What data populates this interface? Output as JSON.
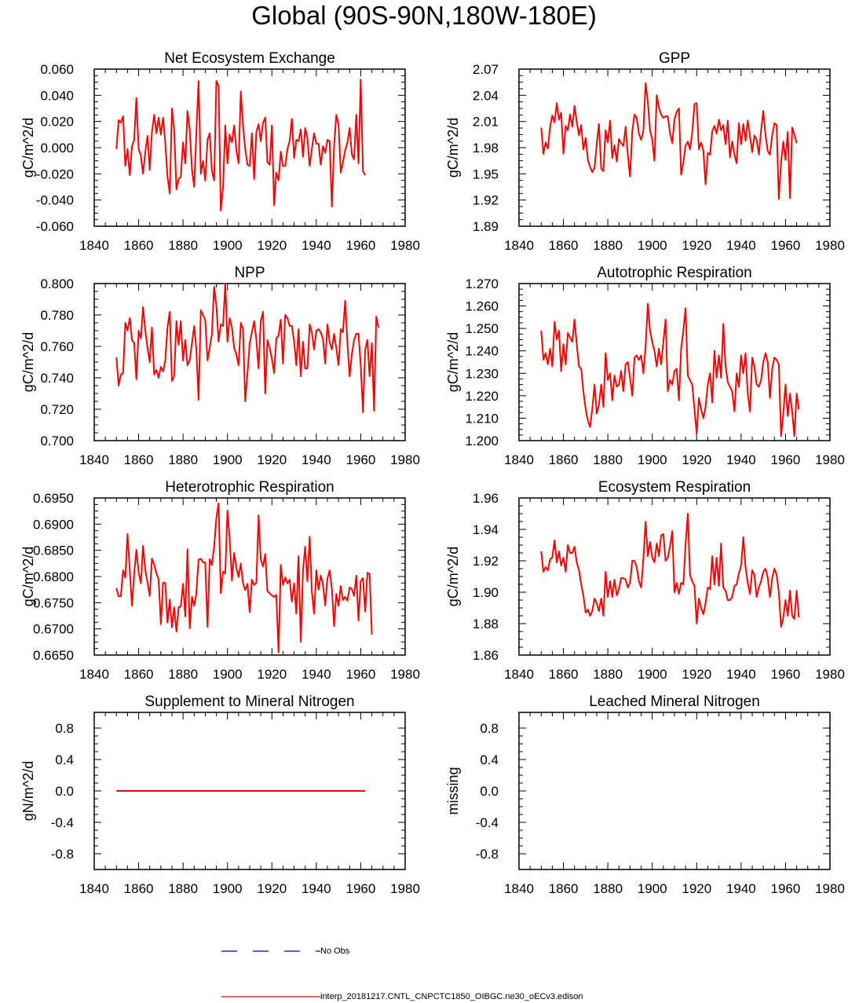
{
  "page": {
    "title": "Global (90S-90N,180W-180E)"
  },
  "legend": {
    "obs_label": "No Obs",
    "model_label": "interp_20181217.CNTL_CNPCTC1850_OIBGC.ne30_oECv3.edison",
    "obs_color": "#0000cc",
    "model_color": "#ff0000"
  },
  "chart_data": [
    {
      "type": "line",
      "title": "Net Ecosystem Exchange",
      "xlabel": "",
      "ylabel": "gC/m^2/d",
      "xlim": [
        1840,
        1980
      ],
      "ylim": [
        -0.06,
        0.06
      ],
      "xticks": [
        1840,
        1860,
        1880,
        1900,
        1920,
        1940,
        1960,
        1980
      ],
      "yticks": [
        -0.06,
        -0.04,
        -0.02,
        0.0,
        0.02,
        0.04,
        0.06
      ],
      "ydecimals": 3,
      "series": [
        {
          "name": "interp_20181217.CNTL_CNPCTC1850_OIBGC.ne30_oECv3.edison",
          "color": "#ff0000",
          "x0": 1850,
          "values": [
            -0.001,
            0.021,
            0.019,
            0.024,
            -0.014,
            -0.001,
            -0.021,
            0.001,
            0.006,
            0.038,
            -0.001,
            -0.006,
            -0.02,
            -0.003,
            0.009,
            -0.017,
            0.012,
            0.025,
            0.011,
            0.023,
            0.01,
            0.023,
            0.004,
            -0.022,
            -0.035,
            0.03,
            0.014,
            -0.032,
            -0.024,
            -0.022,
            0.004,
            -0.012,
            0.028,
            0.014,
            -0.017,
            -0.03,
            0.012,
            0.051,
            -0.02,
            -0.01,
            -0.025,
            0.006,
            0.011,
            -0.018,
            -0.025,
            0.051,
            0.047,
            -0.048,
            -0.03,
            0.017,
            -0.012,
            0.01,
            0.004,
            0.017,
            -0.002,
            -0.012,
            0.043,
            0.017,
            -0.001,
            -0.013,
            -0.014,
            0.011,
            -0.024,
            0.012,
            0.018,
            0.005,
            0.019,
            0.023,
            -0.011,
            -0.013,
            0.017,
            -0.044,
            -0.019,
            -0.025,
            -0.003,
            -0.014,
            -0.014,
            -0.001,
            0.005,
            0.022,
            -0.008,
            0.006,
            0.005,
            0.014,
            -0.007,
            0.015,
            0.007,
            -0.014,
            -0.001,
            0.011,
            0.003,
            0.003,
            -0.013,
            0.001,
            -0.004,
            0.006,
            0.005,
            -0.045,
            0.001,
            0.025,
            0.018,
            -0.019,
            -0.011,
            -0.002,
            0.004,
            0.015,
            -0.005,
            -0.009,
            0.025,
            -0.012,
            0.052,
            -0.018,
            -0.021
          ]
        }
      ]
    },
    {
      "type": "line",
      "title": "GPP",
      "xlabel": "",
      "ylabel": "gC/m^2/d",
      "xlim": [
        1840,
        1980
      ],
      "ylim": [
        1.89,
        2.07
      ],
      "xticks": [
        1840,
        1860,
        1880,
        1900,
        1920,
        1940,
        1960,
        1980
      ],
      "yticks": [
        1.89,
        1.92,
        1.95,
        1.98,
        2.01,
        2.04,
        2.07
      ],
      "ydecimals": 2,
      "series": [
        {
          "name": "interp_20181217.CNTL_CNPCTC1850_OIBGC.ne30_oECv3.edison",
          "color": "#ff0000",
          "x0": 1850,
          "values": [
            2.003,
            1.973,
            1.986,
            1.979,
            2.004,
            2.017,
            2.009,
            2.031,
            2.012,
            2.02,
            1.973,
            2.005,
            2.0,
            2.018,
            2.004,
            2.028,
            2.01,
            1.994,
            2.006,
            1.978,
            1.991,
            1.966,
            1.958,
            1.952,
            1.957,
            1.984,
            2.007,
            1.956,
            1.953,
            2.0,
            1.986,
            2.011,
            1.968,
            1.983,
            1.964,
            1.99,
            1.985,
            1.982,
            2.004,
            1.972,
            1.947,
            1.999,
            2.018,
            2.014,
            1.996,
            1.989,
            1.999,
            2.054,
            2.032,
            2.0,
            1.989,
            1.965,
            2.04,
            2.026,
            2.018,
            2.014,
            2.016,
            2.016,
            1.997,
            1.985,
            2.012,
            2.021,
            2.025,
            1.949,
            1.963,
            1.982,
            1.987,
            1.978,
            1.997,
            2.03,
            2.031,
            1.978,
            1.986,
            1.976,
            1.938,
            1.974,
            1.972,
            1.999,
            2.005,
            1.996,
            2.012,
            2.0,
            2.006,
            1.984,
            2.011,
            1.969,
            1.987,
            1.972,
            1.962,
            2.008,
            1.984,
            2.007,
            1.988,
            2.011,
            1.993,
            1.975,
            1.994,
            1.989,
            1.972,
            2.0,
            2.022,
            1.994,
            1.976,
            1.972,
            1.994,
            2.008,
            2.006,
            1.921,
            1.963,
            1.987,
            1.966,
            1.998,
            1.922,
            2.003,
            1.995,
            1.985
          ]
        }
      ]
    },
    {
      "type": "line",
      "title": "NPP",
      "xlabel": "",
      "ylabel": "gC/m^2/d",
      "xlim": [
        1840,
        1980
      ],
      "ylim": [
        0.7,
        0.8
      ],
      "xticks": [
        1840,
        1860,
        1880,
        1900,
        1920,
        1940,
        1960,
        1980
      ],
      "yticks": [
        0.7,
        0.72,
        0.74,
        0.76,
        0.78,
        0.8
      ],
      "ydecimals": 3,
      "series": [
        {
          "name": "interp_20181217.CNTL_CNPCTC1850_OIBGC.ne30_oECv3.edison",
          "color": "#ff0000",
          "x0": 1850,
          "values": [
            0.753,
            0.735,
            0.742,
            0.743,
            0.775,
            0.77,
            0.778,
            0.764,
            0.762,
            0.739,
            0.77,
            0.765,
            0.785,
            0.77,
            0.759,
            0.75,
            0.772,
            0.742,
            0.745,
            0.74,
            0.747,
            0.744,
            0.751,
            0.772,
            0.782,
            0.738,
            0.741,
            0.776,
            0.761,
            0.776,
            0.751,
            0.764,
            0.748,
            0.751,
            0.762,
            0.773,
            0.758,
            0.726,
            0.783,
            0.78,
            0.777,
            0.751,
            0.759,
            0.768,
            0.798,
            0.786,
            0.763,
            0.774,
            0.773,
            0.8,
            0.763,
            0.778,
            0.772,
            0.759,
            0.755,
            0.748,
            0.775,
            0.771,
            0.725,
            0.743,
            0.762,
            0.769,
            0.776,
            0.764,
            0.746,
            0.776,
            0.782,
            0.73,
            0.764,
            0.759,
            0.752,
            0.743,
            0.765,
            0.767,
            0.777,
            0.749,
            0.78,
            0.778,
            0.773,
            0.773,
            0.763,
            0.748,
            0.771,
            0.741,
            0.763,
            0.746,
            0.746,
            0.774,
            0.769,
            0.758,
            0.77,
            0.771,
            0.769,
            0.765,
            0.749,
            0.774,
            0.763,
            0.758,
            0.768,
            0.759,
            0.748,
            0.771,
            0.769,
            0.789,
            0.762,
            0.741,
            0.755,
            0.764,
            0.768,
            0.768,
            0.748,
            0.718,
            0.758,
            0.764,
            0.741,
            0.762,
            0.719,
            0.779,
            0.772
          ]
        }
      ]
    },
    {
      "type": "line",
      "title": "Autotrophic Respiration",
      "xlabel": "",
      "ylabel": "gC/m^2/d",
      "xlim": [
        1840,
        1980
      ],
      "ylim": [
        1.2,
        1.27
      ],
      "xticks": [
        1840,
        1860,
        1880,
        1900,
        1920,
        1940,
        1960,
        1980
      ],
      "yticks": [
        1.2,
        1.21,
        1.22,
        1.23,
        1.24,
        1.25,
        1.26,
        1.27
      ],
      "ydecimals": 3,
      "series": [
        {
          "name": "interp_20181217.CNTL_CNPCTC1850_OIBGC.ne30_oECv3.edison",
          "color": "#ff0000",
          "x0": 1850,
          "values": [
            1.249,
            1.236,
            1.239,
            1.234,
            1.241,
            1.233,
            1.253,
            1.245,
            1.249,
            1.231,
            1.243,
            1.234,
            1.248,
            1.246,
            1.244,
            1.254,
            1.243,
            1.233,
            1.232,
            1.222,
            1.214,
            1.209,
            1.206,
            1.214,
            1.225,
            1.212,
            1.216,
            1.225,
            1.215,
            1.239,
            1.227,
            1.23,
            1.218,
            1.229,
            1.224,
            1.225,
            1.231,
            1.222,
            1.234,
            1.235,
            1.228,
            1.22,
            1.237,
            1.238,
            1.236,
            1.238,
            1.23,
            1.242,
            1.261,
            1.249,
            1.244,
            1.24,
            1.233,
            1.241,
            1.234,
            1.244,
            1.254,
            1.222,
            1.227,
            1.225,
            1.231,
            1.232,
            1.218,
            1.241,
            1.249,
            1.259,
            1.229,
            1.227,
            1.225,
            1.214,
            1.203,
            1.219,
            1.214,
            1.21,
            1.215,
            1.225,
            1.23,
            1.217,
            1.24,
            1.228,
            1.238,
            1.228,
            1.252,
            1.233,
            1.226,
            1.224,
            1.222,
            1.213,
            1.23,
            1.224,
            1.238,
            1.23,
            1.239,
            1.221,
            1.213,
            1.237,
            1.233,
            1.225,
            1.224,
            1.227,
            1.235,
            1.239,
            1.235,
            1.219,
            1.232,
            1.237,
            1.236,
            1.234,
            1.202,
            1.212,
            1.225,
            1.211,
            1.221,
            1.213,
            1.202,
            1.221,
            1.214
          ]
        }
      ]
    },
    {
      "type": "line",
      "title": "Heterotrophic Respiration",
      "xlabel": "",
      "ylabel": "gC/m^2/d",
      "xlim": [
        1840,
        1980
      ],
      "ylim": [
        0.665,
        0.695
      ],
      "xticks": [
        1840,
        1860,
        1880,
        1900,
        1920,
        1940,
        1960,
        1980
      ],
      "yticks": [
        0.665,
        0.67,
        0.675,
        0.68,
        0.685,
        0.69,
        0.695
      ],
      "ydecimals": 4,
      "series": [
        {
          "name": "interp_20181217.CNTL_CNPCTC1850_OIBGC.ne30_oECv3.edison",
          "color": "#ff0000",
          "x0": 1850,
          "values": [
            0.6778,
            0.6762,
            0.6762,
            0.6812,
            0.6798,
            0.6881,
            0.6812,
            0.6744,
            0.6806,
            0.6851,
            0.6808,
            0.6787,
            0.6859,
            0.6812,
            0.6788,
            0.6763,
            0.6834,
            0.6823,
            0.6806,
            0.6795,
            0.6709,
            0.6788,
            0.6788,
            0.6712,
            0.6756,
            0.6703,
            0.6741,
            0.6695,
            0.6741,
            0.6743,
            0.6786,
            0.6724,
            0.6852,
            0.6701,
            0.6761,
            0.6744,
            0.6768,
            0.6832,
            0.6834,
            0.6827,
            0.6827,
            0.6704,
            0.6833,
            0.6822,
            0.6857,
            0.6912,
            0.694,
            0.6768,
            0.6809,
            0.6806,
            0.6926,
            0.6871,
            0.6792,
            0.6845,
            0.6817,
            0.6799,
            0.6825,
            0.6787,
            0.6774,
            0.6786,
            0.6732,
            0.6794,
            0.6784,
            0.6788,
            0.6917,
            0.6833,
            0.6819,
            0.6843,
            0.6772,
            0.6768,
            0.6764,
            0.6761,
            0.6765,
            0.6655,
            0.6822,
            0.6784,
            0.6798,
            0.6787,
            0.6794,
            0.6752,
            0.6787,
            0.6729,
            0.6839,
            0.6675,
            0.6812,
            0.6857,
            0.6791,
            0.6876,
            0.6771,
            0.6729,
            0.6812,
            0.6775,
            0.6802,
            0.6785,
            0.6745,
            0.6796,
            0.6812,
            0.6776,
            0.6705,
            0.6767,
            0.6744,
            0.6782,
            0.6755,
            0.6761,
            0.6754,
            0.6779,
            0.6776,
            0.6763,
            0.6802,
            0.6716,
            0.6791,
            0.6797,
            0.6733,
            0.6807,
            0.6805,
            0.6689
          ]
        }
      ]
    },
    {
      "type": "line",
      "title": "Ecosystem Respiration",
      "xlabel": "",
      "ylabel": "gC/m^2/d",
      "xlim": [
        1840,
        1980
      ],
      "ylim": [
        1.86,
        1.96
      ],
      "xticks": [
        1840,
        1860,
        1880,
        1900,
        1920,
        1940,
        1960,
        1980
      ],
      "yticks": [
        1.86,
        1.88,
        1.9,
        1.92,
        1.94,
        1.96
      ],
      "ydecimals": 2,
      "series": [
        {
          "name": "interp_20181217.CNTL_CNPCTC1850_OIBGC.ne30_oECv3.edison",
          "color": "#ff0000",
          "x0": 1850,
          "values": [
            1.926,
            1.913,
            1.916,
            1.914,
            1.921,
            1.922,
            1.933,
            1.919,
            1.926,
            1.917,
            1.922,
            1.913,
            1.93,
            1.925,
            1.925,
            1.929,
            1.919,
            1.914,
            1.905,
            1.898,
            1.887,
            1.889,
            1.885,
            1.888,
            1.896,
            1.893,
            1.888,
            1.896,
            1.885,
            1.913,
            1.897,
            1.907,
            1.897,
            1.908,
            1.898,
            1.902,
            1.909,
            1.909,
            1.908,
            1.903,
            1.906,
            1.92,
            1.92,
            1.916,
            1.907,
            1.903,
            1.921,
            1.945,
            1.923,
            1.932,
            1.922,
            1.919,
            1.931,
            1.923,
            1.936,
            1.937,
            1.92,
            1.922,
            1.929,
            1.939,
            1.9,
            1.906,
            1.899,
            1.906,
            1.905,
            1.93,
            1.95,
            1.911,
            1.907,
            1.904,
            1.88,
            1.896,
            1.89,
            1.886,
            1.893,
            1.903,
            1.902,
            1.923,
            1.905,
            1.922,
            1.904,
            1.931,
            1.903,
            1.901,
            1.895,
            1.895,
            1.897,
            1.904,
            1.905,
            1.912,
            1.917,
            1.935,
            1.916,
            1.906,
            1.899,
            1.914,
            1.911,
            1.897,
            1.903,
            1.907,
            1.913,
            1.915,
            1.909,
            1.897,
            1.909,
            1.915,
            1.911,
            1.9,
            1.878,
            1.884,
            1.895,
            1.885,
            1.901,
            1.885,
            1.883,
            1.901,
            1.884
          ]
        }
      ]
    },
    {
      "type": "line",
      "title": "Supplement to Mineral Nitrogen",
      "xlabel": "",
      "ylabel": "gN/m^2/d",
      "xlim": [
        1840,
        1980
      ],
      "ylim": [
        -1.0,
        1.0
      ],
      "xticks": [
        1840,
        1860,
        1880,
        1900,
        1920,
        1940,
        1960,
        1980
      ],
      "yticks": [
        -0.8,
        -0.4,
        0.0,
        0.4,
        0.8
      ],
      "ydecimals": 1,
      "series": [
        {
          "name": "interp_20181217.CNTL_CNPCTC1850_OIBGC.ne30_oECv3.edison",
          "color": "#ff0000",
          "x": [
            1850,
            1962
          ],
          "values": [
            0.0,
            0.0
          ]
        }
      ]
    },
    {
      "type": "line",
      "title": "Leached Mineral Nitrogen",
      "xlabel": "",
      "ylabel": "missing",
      "xlim": [
        1840,
        1980
      ],
      "ylim": [
        -1.0,
        1.0
      ],
      "xticks": [
        1840,
        1860,
        1880,
        1900,
        1920,
        1940,
        1960,
        1980
      ],
      "yticks": [
        -0.8,
        -0.4,
        0.0,
        0.4,
        0.8
      ],
      "ydecimals": 1,
      "series": []
    }
  ]
}
